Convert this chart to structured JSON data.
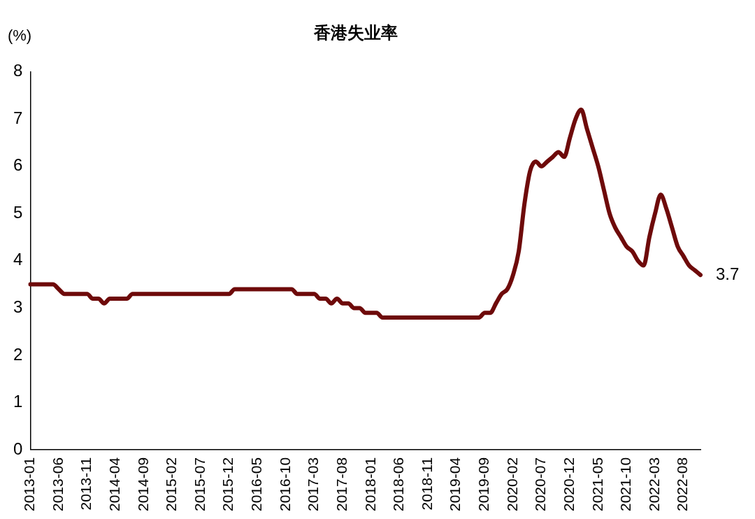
{
  "chart_data": {
    "type": "line",
    "title": "香港失业率",
    "ylabel": "(%)",
    "categories": [
      "2013-01",
      null,
      null,
      null,
      null,
      "2013-06",
      null,
      null,
      null,
      null,
      "2013-11",
      null,
      null,
      null,
      null,
      "2014-04",
      null,
      null,
      null,
      null,
      "2014-09",
      null,
      null,
      null,
      null,
      "2015-02",
      null,
      null,
      null,
      null,
      "2015-07",
      null,
      null,
      null,
      null,
      "2015-12",
      null,
      null,
      null,
      null,
      "2016-05",
      null,
      null,
      null,
      null,
      "2016-10",
      null,
      null,
      null,
      null,
      "2017-03",
      null,
      null,
      null,
      null,
      "2017-08",
      null,
      null,
      null,
      null,
      "2018-01",
      null,
      null,
      null,
      null,
      "2018-06",
      null,
      null,
      null,
      null,
      "2018-11",
      null,
      null,
      null,
      null,
      "2019-04",
      null,
      null,
      null,
      null,
      "2019-09",
      null,
      null,
      null,
      null,
      "2020-02",
      null,
      null,
      null,
      null,
      "2020-07",
      null,
      null,
      null,
      null,
      "2020-12",
      null,
      null,
      null,
      null,
      "2021-05",
      null,
      null,
      null,
      null,
      "2021-10",
      null,
      null,
      null,
      null,
      "2022-03",
      null,
      null,
      null,
      null,
      "2022-08",
      null,
      null,
      null
    ],
    "series": [
      {
        "color": "#6e0a0a",
        "values": [
          3.5,
          3.5,
          3.5,
          3.5,
          3.5,
          3.4,
          3.3,
          3.3,
          3.3,
          3.3,
          3.3,
          3.2,
          3.2,
          3.1,
          3.2,
          3.2,
          3.2,
          3.2,
          3.3,
          3.3,
          3.3,
          3.3,
          3.3,
          3.3,
          3.3,
          3.3,
          3.3,
          3.3,
          3.3,
          3.3,
          3.3,
          3.3,
          3.3,
          3.3,
          3.3,
          3.3,
          3.4,
          3.4,
          3.4,
          3.4,
          3.4,
          3.4,
          3.4,
          3.4,
          3.4,
          3.4,
          3.4,
          3.3,
          3.3,
          3.3,
          3.3,
          3.2,
          3.2,
          3.1,
          3.2,
          3.1,
          3.1,
          3.0,
          3.0,
          2.9,
          2.9,
          2.9,
          2.8,
          2.8,
          2.8,
          2.8,
          2.8,
          2.8,
          2.8,
          2.8,
          2.8,
          2.8,
          2.8,
          2.8,
          2.8,
          2.8,
          2.8,
          2.8,
          2.8,
          2.8,
          2.9,
          2.9,
          3.1,
          3.3,
          3.4,
          3.7,
          4.2,
          5.2,
          5.9,
          6.1,
          6.0,
          6.1,
          6.2,
          6.3,
          6.2,
          6.6,
          7.0,
          7.2,
          6.8,
          6.4,
          6.0,
          5.5,
          5.0,
          4.7,
          4.5,
          4.3,
          4.2,
          4.0,
          3.9,
          4.5,
          5.0,
          5.4,
          5.1,
          4.7,
          4.3,
          4.1,
          3.9,
          3.8,
          3.7
        ],
        "value_labels": [
          null,
          null,
          null,
          null,
          null,
          null,
          null,
          null,
          null,
          null,
          null,
          null,
          null,
          null,
          null,
          null,
          null,
          null,
          null,
          null,
          null,
          null,
          null,
          null,
          null,
          null,
          null,
          null,
          null,
          null,
          null,
          null,
          null,
          null,
          null,
          null,
          null,
          null,
          null,
          null,
          null,
          null,
          null,
          null,
          null,
          null,
          null,
          null,
          null,
          null,
          null,
          null,
          null,
          null,
          null,
          null,
          null,
          null,
          null,
          null,
          null,
          null,
          null,
          null,
          null,
          null,
          null,
          null,
          null,
          null,
          null,
          null,
          null,
          null,
          null,
          null,
          null,
          null,
          null,
          null,
          null,
          null,
          null,
          null,
          null,
          null,
          null,
          null,
          null,
          null,
          null,
          null,
          null,
          null,
          null,
          null,
          null,
          null,
          null,
          null,
          null,
          null,
          null,
          null,
          null,
          null,
          null,
          null,
          null,
          null,
          null,
          null,
          null,
          null,
          null,
          null,
          null,
          null,
          "3.7"
        ]
      }
    ],
    "ylim": [
      0,
      8
    ],
    "yticks": [
      0,
      1,
      2,
      3,
      4,
      5,
      6,
      7,
      8
    ],
    "grid": false,
    "legend": false,
    "marker": "none",
    "line_style": "solid"
  }
}
